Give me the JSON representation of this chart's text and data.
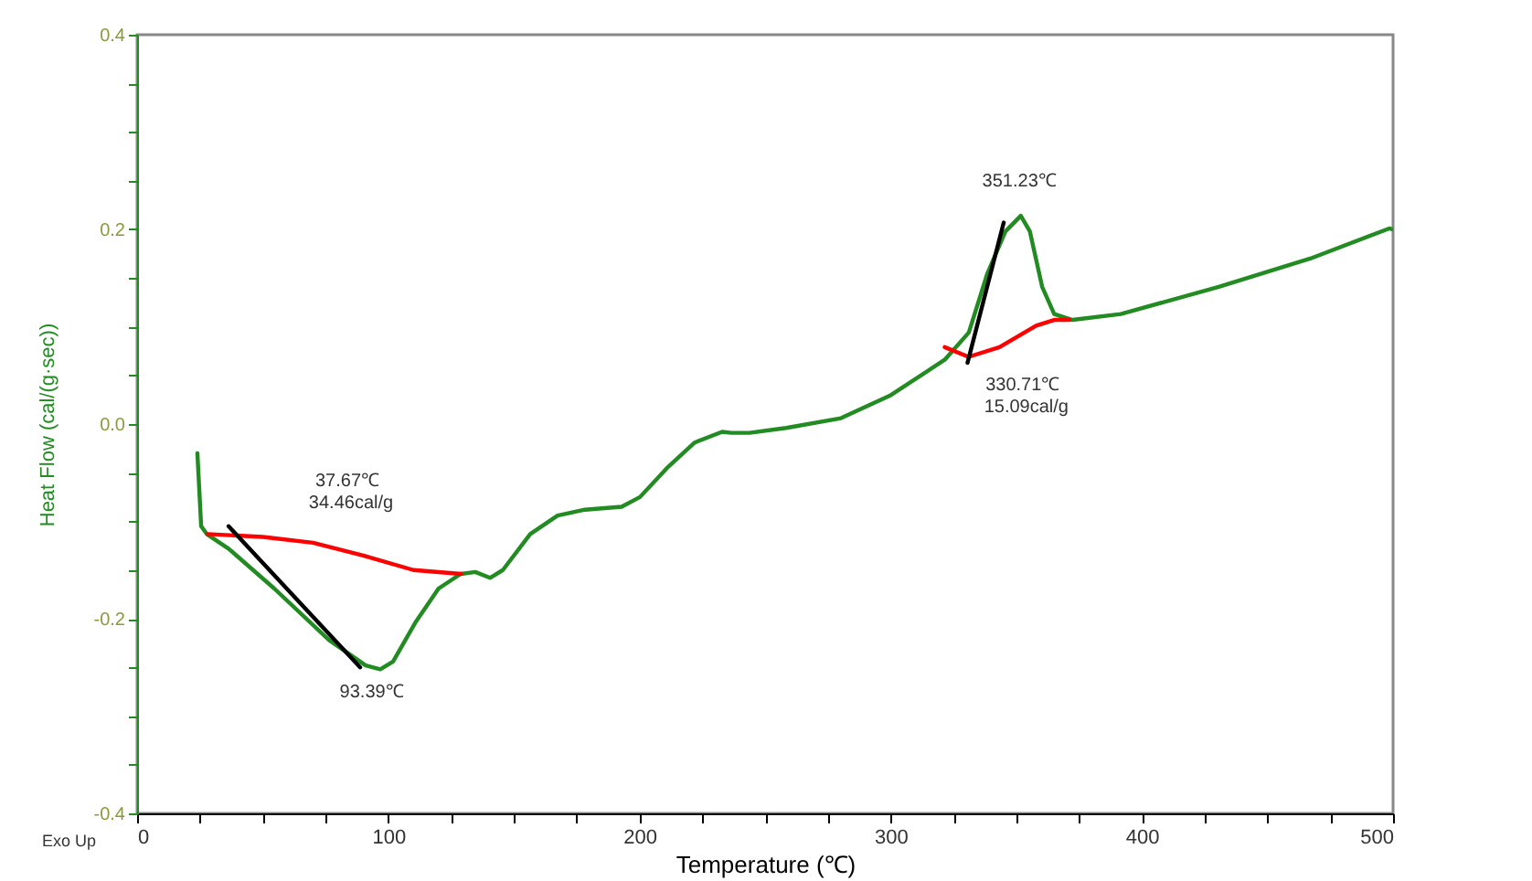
{
  "chart_data": {
    "type": "line",
    "xlabel": "Temperature (℃)",
    "ylabel": "Heat Flow (cal/(g·sec))",
    "xlim": [
      0,
      500
    ],
    "ylim": [
      -0.4,
      0.4
    ],
    "xticks": [
      0,
      {
        "value": 25,
        "label": null
      },
      {
        "value": 50,
        "label": null
      },
      {
        "value": 75,
        "label": null
      },
      100,
      {
        "value": 125,
        "label": null
      },
      {
        "value": 150,
        "label": null
      },
      {
        "value": 175,
        "label": null
      },
      200,
      {
        "value": 225,
        "label": null
      },
      {
        "value": 250,
        "label": null
      },
      {
        "value": 275,
        "label": null
      },
      300,
      {
        "value": 325,
        "label": null
      },
      {
        "value": 350,
        "label": null
      },
      {
        "value": 375,
        "label": null
      },
      400,
      {
        "value": 425,
        "label": null
      },
      {
        "value": 450,
        "label": null
      },
      {
        "value": 475,
        "label": null
      },
      500
    ],
    "yticks": [
      -0.4,
      {
        "value": -0.35,
        "label": null
      },
      {
        "value": -0.3,
        "label": null
      },
      {
        "value": -0.25,
        "label": null
      },
      -0.2,
      {
        "value": -0.15,
        "label": null
      },
      {
        "value": -0.1,
        "label": null
      },
      {
        "value": -0.05,
        "label": null
      },
      {
        "value": 0,
        "label": "0.0"
      },
      {
        "value": 0.05,
        "label": null
      },
      {
        "value": 0.1,
        "label": null
      },
      {
        "value": 0.15,
        "label": null
      },
      0.2,
      {
        "value": 0.25,
        "label": null
      },
      {
        "value": 0.3,
        "label": null
      },
      {
        "value": 0.35,
        "label": null
      },
      0.4
    ],
    "grid": false,
    "line_style": "solid",
    "marker": "none",
    "series": [
      {
        "color": "#228b22",
        "x": [
          24,
          25.5,
          27.7,
          36.4,
          54.6,
          76.4,
          91,
          96.8,
          101.9,
          111,
          120,
          128.8,
          134.6,
          140.5,
          145.6,
          156.5,
          167.4,
          178.3,
          192.9,
          200.2,
          211,
          222,
          232.9,
          236.5,
          243.8,
          258.4,
          280.2,
          299.6,
          321.5,
          331.1,
          338.4,
          345.7,
          351.8,
          355.4,
          360.3,
          365.1,
          372.4,
          391.6,
          430.6,
          467,
          498.5,
          500
        ],
        "values": [
          -0.03,
          -0.105,
          -0.113,
          -0.128,
          -0.169,
          -0.222,
          -0.248,
          -0.252,
          -0.244,
          -0.203,
          -0.169,
          -0.154,
          -0.152,
          -0.158,
          -0.15,
          -0.113,
          -0.094,
          -0.088,
          -0.085,
          -0.075,
          -0.045,
          -0.019,
          -0.008,
          -0.009,
          -0.009,
          -0.004,
          0.006,
          0.029,
          0.066,
          0.094,
          0.154,
          0.198,
          0.214,
          0.198,
          0.141,
          0.113,
          0.107,
          0.113,
          0.141,
          0.17,
          0.201,
          0.2
        ]
      },
      {
        "color": "#ff0000",
        "x": [
          28,
          50,
          70,
          90,
          110,
          129
        ],
        "values": [
          -0.113,
          -0.116,
          -0.122,
          -0.135,
          -0.15,
          -0.154
        ]
      },
      {
        "color": "#ff0000",
        "x": [
          321.5,
          331,
          343.3,
          357.9,
          365.1,
          371.2
        ],
        "values": [
          0.079,
          0.069,
          0.079,
          0.101,
          0.107,
          0.107
        ]
      },
      {
        "color": "#000000",
        "x": [
          36.4,
          88.8
        ],
        "values": [
          -0.105,
          -0.25
        ]
      },
      {
        "color": "#000000",
        "x": [
          330.6,
          345
        ],
        "values": [
          0.063,
          0.207
        ]
      }
    ],
    "annotations": [
      "Exo Up",
      "37.67℃",
      "34.46cal/g",
      {
        "text": "93.39℃",
        "x": 93.39,
        "y": -0.249
      },
      {
        "text": "351.23℃",
        "x": 351.23,
        "y": 0.214
      },
      {
        "text": "330.71℃",
        "x": 330.71,
        "y": 0.069
      },
      "15.09cal/g"
    ]
  }
}
